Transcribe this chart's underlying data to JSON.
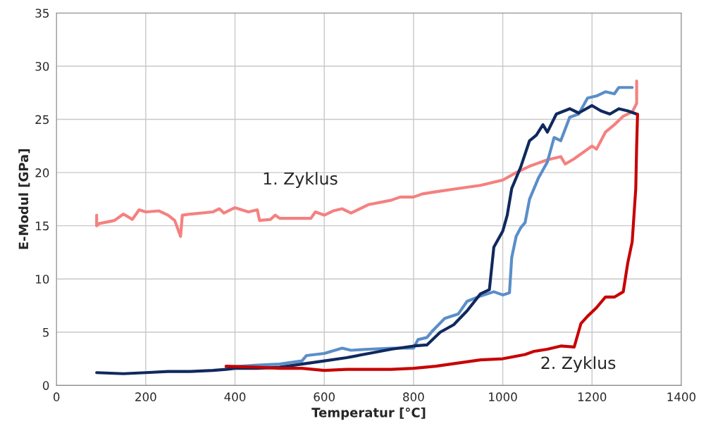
{
  "chart_data": {
    "type": "line",
    "xlabel": "Temperatur [°C]",
    "ylabel": "E-Modul [GPa]",
    "xlim": [
      0,
      1400
    ],
    "xticks": [
      0,
      200,
      400,
      600,
      800,
      1000,
      1200,
      1400
    ],
    "ylim": [
      0,
      35
    ],
    "yticks": [
      0,
      5,
      10,
      15,
      20,
      25,
      30,
      35
    ],
    "grid": true,
    "marker": "none",
    "line_style": "solid",
    "annotations": [
      "1. Zyklus",
      "2. Zyklus"
    ],
    "series": [
      {
        "color": "#f4817f",
        "x": [
          90,
          90,
          95,
          130,
          150,
          170,
          185,
          200,
          230,
          250,
          265,
          278,
          282,
          300,
          350,
          365,
          375,
          400,
          430,
          450,
          455,
          480,
          490,
          500,
          550,
          570,
          580,
          600,
          620,
          640,
          660,
          700,
          750,
          770,
          800,
          820,
          850,
          900,
          950,
          1000,
          1030,
          1060,
          1100,
          1130,
          1140,
          1160,
          1200,
          1210,
          1230,
          1250,
          1270,
          1290,
          1300,
          1300
        ],
        "values": [
          16.0,
          15.0,
          15.2,
          15.5,
          16.1,
          15.6,
          16.5,
          16.3,
          16.4,
          16.0,
          15.5,
          14.0,
          16.0,
          16.1,
          16.3,
          16.6,
          16.2,
          16.7,
          16.3,
          16.5,
          15.5,
          15.6,
          16.0,
          15.7,
          15.7,
          15.7,
          16.3,
          16.0,
          16.4,
          16.6,
          16.2,
          17.0,
          17.4,
          17.7,
          17.7,
          18.0,
          18.2,
          18.5,
          18.8,
          19.3,
          20.0,
          20.6,
          21.2,
          21.5,
          20.8,
          21.3,
          22.5,
          22.2,
          23.8,
          24.5,
          25.3,
          25.7,
          26.5,
          28.6
        ]
      },
      {
        "color": "#5b8ec9",
        "x": [
          380,
          450,
          500,
          550,
          560,
          600,
          640,
          660,
          700,
          750,
          800,
          810,
          830,
          840,
          870,
          900,
          920,
          950,
          980,
          1000,
          1015,
          1020,
          1030,
          1040,
          1050,
          1060,
          1080,
          1100,
          1115,
          1130,
          1150,
          1170,
          1190,
          1210,
          1230,
          1250,
          1260,
          1290
        ],
        "values": [
          1.7,
          1.9,
          2.0,
          2.3,
          2.8,
          3.0,
          3.5,
          3.3,
          3.4,
          3.5,
          3.5,
          4.3,
          4.5,
          5.0,
          6.3,
          6.7,
          7.9,
          8.4,
          8.8,
          8.5,
          8.7,
          12.0,
          14.0,
          14.8,
          15.3,
          17.5,
          19.5,
          21.0,
          23.3,
          23.0,
          25.2,
          25.5,
          27.0,
          27.2,
          27.6,
          27.4,
          28.0,
          28.0
        ]
      },
      {
        "color": "#10295e",
        "x": [
          90,
          150,
          200,
          250,
          300,
          350,
          380,
          400,
          450,
          500,
          550,
          600,
          650,
          700,
          750,
          800,
          830,
          860,
          890,
          920,
          950,
          970,
          980,
          1000,
          1010,
          1020,
          1040,
          1060,
          1075,
          1090,
          1100,
          1120,
          1150,
          1170,
          1200,
          1220,
          1240,
          1260,
          1280,
          1300
        ],
        "values": [
          1.2,
          1.1,
          1.2,
          1.3,
          1.3,
          1.4,
          1.5,
          1.6,
          1.6,
          1.7,
          2.0,
          2.3,
          2.6,
          3.0,
          3.4,
          3.7,
          3.8,
          5.0,
          5.7,
          7.0,
          8.6,
          9.0,
          13.0,
          14.5,
          16.0,
          18.5,
          20.5,
          23.0,
          23.5,
          24.5,
          23.8,
          25.5,
          26.0,
          25.6,
          26.3,
          25.8,
          25.5,
          26.0,
          25.8,
          25.5
        ]
      },
      {
        "color": "#c80000",
        "x": [
          380,
          450,
          500,
          550,
          600,
          650,
          700,
          750,
          800,
          850,
          900,
          950,
          1000,
          1050,
          1070,
          1100,
          1130,
          1160,
          1175,
          1190,
          1210,
          1230,
          1250,
          1270,
          1280,
          1290,
          1298,
          1300,
          1302
        ],
        "values": [
          1.8,
          1.7,
          1.6,
          1.6,
          1.4,
          1.5,
          1.5,
          1.5,
          1.6,
          1.8,
          2.1,
          2.4,
          2.5,
          2.9,
          3.2,
          3.4,
          3.7,
          3.6,
          5.8,
          6.5,
          7.3,
          8.3,
          8.3,
          8.8,
          11.5,
          13.5,
          18.5,
          22.5,
          25.5
        ]
      }
    ]
  }
}
